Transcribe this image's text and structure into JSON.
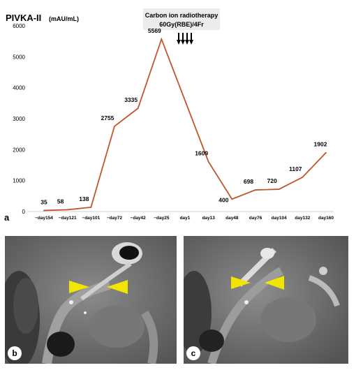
{
  "chart_data": {
    "type": "line",
    "title": "PIVKA-II",
    "unit": "(mAU/mL)",
    "panel_label": "a",
    "ylim": [
      0,
      6000
    ],
    "yticks": [
      0,
      1000,
      2000,
      3000,
      4000,
      5000,
      6000
    ],
    "grid": false,
    "line_color": "#c0562c",
    "categories": [
      "−day154",
      "−day121",
      "−day101",
      "−day72",
      "−day42",
      "−day25",
      "day1",
      "day13",
      "day48",
      "day76",
      "day104",
      "day132",
      "day160"
    ],
    "series": [
      {
        "points": [
          {
            "x": "−day154",
            "y": 35
          },
          {
            "x": "−day121",
            "y": 58
          },
          {
            "x": "−day101",
            "y": 138
          },
          {
            "x": "−day72",
            "y": 2755
          },
          {
            "x": "−day42",
            "y": 3335
          },
          {
            "x": "−day25",
            "y": 5569
          },
          {
            "x": "day13",
            "y": 1609
          },
          {
            "x": "day48",
            "y": 400
          },
          {
            "x": "day76",
            "y": 698
          },
          {
            "x": "day104",
            "y": 720
          },
          {
            "x": "day132",
            "y": 1107
          },
          {
            "x": "day160",
            "y": 1902
          }
        ]
      }
    ],
    "annotation": {
      "line1": "Carbon ion radiotherapy",
      "line2": "60Gy(RBE)/4Fr",
      "arrow_count": 4,
      "box_color": "#ececec"
    }
  },
  "panels": [
    {
      "label": "b"
    },
    {
      "label": "c"
    }
  ],
  "arrowhead_color": "#f2e600"
}
